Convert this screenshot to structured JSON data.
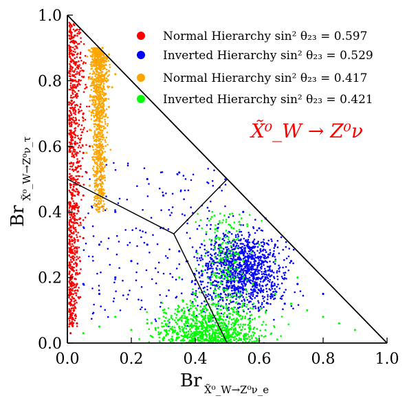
{
  "chart_data": {
    "type": "scatter",
    "title": "",
    "xlabel": "Br",
    "xlabel_sub": "X̃⁰_W→Z⁰ν_e",
    "ylabel": "Br",
    "ylabel_sub": "X̃⁰_W→Z⁰ν_τ",
    "xlim": [
      0.0,
      1.0
    ],
    "ylim": [
      0.0,
      1.0
    ],
    "x_ticks": [
      "0.0",
      "0.2",
      "0.4",
      "0.6",
      "0.8",
      "1.0"
    ],
    "y_ticks": [
      "0.0",
      "0.2",
      "0.4",
      "0.6",
      "0.8",
      "1.0"
    ],
    "grid": false,
    "legend_position": "top-right",
    "annotation": {
      "text": "X̃⁰_W → Z⁰ν",
      "color": "#ff0000"
    },
    "series": [
      {
        "name": "Normal Hierarchy sin² θ₂₃ = 0.597",
        "color": "#ff0000",
        "region": "narrow band along left edge",
        "x_range": [
          0.0,
          0.12
        ],
        "y_range": [
          0.02,
          0.98
        ],
        "points": [
          [
            0.01,
            0.95
          ],
          [
            0.02,
            0.92
          ],
          [
            0.015,
            0.88
          ],
          [
            0.03,
            0.9
          ],
          [
            0.025,
            0.85
          ],
          [
            0.04,
            0.87
          ],
          [
            0.05,
            0.83
          ],
          [
            0.02,
            0.8
          ],
          [
            0.06,
            0.78
          ],
          [
            0.03,
            0.76
          ],
          [
            0.04,
            0.72
          ],
          [
            0.05,
            0.7
          ],
          [
            0.03,
            0.67
          ],
          [
            0.07,
            0.65
          ],
          [
            0.04,
            0.62
          ],
          [
            0.05,
            0.58
          ],
          [
            0.03,
            0.55
          ],
          [
            0.06,
            0.52
          ],
          [
            0.04,
            0.48
          ],
          [
            0.05,
            0.45
          ],
          [
            0.03,
            0.42
          ],
          [
            0.04,
            0.38
          ],
          [
            0.02,
            0.35
          ],
          [
            0.05,
            0.32
          ],
          [
            0.03,
            0.28
          ],
          [
            0.04,
            0.25
          ],
          [
            0.02,
            0.22
          ],
          [
            0.03,
            0.18
          ],
          [
            0.04,
            0.14
          ],
          [
            0.02,
            0.1
          ],
          [
            0.03,
            0.06
          ],
          [
            0.01,
            0.03
          ],
          [
            0.08,
            0.74
          ],
          [
            0.09,
            0.68
          ],
          [
            0.07,
            0.6
          ]
        ]
      },
      {
        "name": "Inverted Hierarchy sin² θ₂₃ = 0.529",
        "color": "#0000ff",
        "region": "broad cloud centred near x=0.5, y=0.3",
        "x_range": [
          0.0,
          0.85
        ],
        "y_range": [
          0.0,
          0.55
        ],
        "points": [
          [
            0.55,
            0.4
          ],
          [
            0.6,
            0.35
          ],
          [
            0.62,
            0.38
          ],
          [
            0.52,
            0.3
          ],
          [
            0.58,
            0.28
          ],
          [
            0.65,
            0.3
          ],
          [
            0.5,
            0.25
          ],
          [
            0.45,
            0.3
          ],
          [
            0.42,
            0.22
          ],
          [
            0.35,
            0.28
          ],
          [
            0.3,
            0.35
          ],
          [
            0.25,
            0.3
          ],
          [
            0.2,
            0.25
          ],
          [
            0.15,
            0.2
          ],
          [
            0.1,
            0.15
          ],
          [
            0.4,
            0.18
          ],
          [
            0.48,
            0.15
          ],
          [
            0.55,
            0.2
          ],
          [
            0.62,
            0.22
          ],
          [
            0.7,
            0.25
          ],
          [
            0.72,
            0.18
          ],
          [
            0.68,
            0.12
          ],
          [
            0.6,
            0.1
          ],
          [
            0.5,
            0.08
          ],
          [
            0.38,
            0.1
          ],
          [
            0.3,
            0.45
          ],
          [
            0.25,
            0.5
          ],
          [
            0.35,
            0.52
          ],
          [
            0.15,
            0.4
          ],
          [
            0.1,
            0.3
          ],
          [
            0.05,
            0.18
          ],
          [
            0.57,
            0.33
          ],
          [
            0.63,
            0.27
          ],
          [
            0.47,
            0.35
          ],
          [
            0.8,
            0.15
          ]
        ]
      },
      {
        "name": "Normal Hierarchy sin² θ₂₃ = 0.417",
        "color": "#ffa500",
        "region": "dense cluster upper left",
        "x_range": [
          0.03,
          0.16
        ],
        "y_range": [
          0.45,
          0.92
        ],
        "points": [
          [
            0.08,
            0.88
          ],
          [
            0.1,
            0.85
          ],
          [
            0.12,
            0.86
          ],
          [
            0.09,
            0.82
          ],
          [
            0.11,
            0.8
          ],
          [
            0.13,
            0.83
          ],
          [
            0.1,
            0.78
          ],
          [
            0.12,
            0.76
          ],
          [
            0.08,
            0.75
          ],
          [
            0.11,
            0.73
          ],
          [
            0.09,
            0.7
          ],
          [
            0.13,
            0.72
          ],
          [
            0.1,
            0.68
          ],
          [
            0.12,
            0.8
          ],
          [
            0.14,
            0.78
          ],
          [
            0.07,
            0.65
          ],
          [
            0.09,
            0.62
          ],
          [
            0.1,
            0.6
          ],
          [
            0.08,
            0.56
          ],
          [
            0.09,
            0.52
          ],
          [
            0.07,
            0.48
          ],
          [
            0.11,
            0.9
          ],
          [
            0.13,
            0.88
          ],
          [
            0.15,
            0.82
          ],
          [
            0.06,
            0.58
          ]
        ]
      },
      {
        "name": "Inverted Hierarchy sin² θ₂₃ = 0.421",
        "color": "#00ff00",
        "region": "broad cloud lower region",
        "x_range": [
          0.0,
          0.95
        ],
        "y_range": [
          0.0,
          0.45
        ],
        "points": [
          [
            0.45,
            0.05
          ],
          [
            0.4,
            0.08
          ],
          [
            0.5,
            0.1
          ],
          [
            0.55,
            0.12
          ],
          [
            0.6,
            0.08
          ],
          [
            0.35,
            0.05
          ],
          [
            0.3,
            0.1
          ],
          [
            0.25,
            0.06
          ],
          [
            0.2,
            0.04
          ],
          [
            0.15,
            0.08
          ],
          [
            0.65,
            0.15
          ],
          [
            0.7,
            0.12
          ],
          [
            0.75,
            0.1
          ],
          [
            0.8,
            0.08
          ],
          [
            0.85,
            0.06
          ],
          [
            0.9,
            0.04
          ],
          [
            0.5,
            0.2
          ],
          [
            0.55,
            0.25
          ],
          [
            0.6,
            0.3
          ],
          [
            0.65,
            0.25
          ],
          [
            0.45,
            0.18
          ],
          [
            0.4,
            0.15
          ],
          [
            0.35,
            0.2
          ],
          [
            0.48,
            0.28
          ],
          [
            0.52,
            0.35
          ],
          [
            0.1,
            0.05
          ],
          [
            0.05,
            0.03
          ],
          [
            0.58,
            0.18
          ],
          [
            0.72,
            0.2
          ],
          [
            0.42,
            0.02
          ]
        ]
      }
    ],
    "boundary_lines": [
      {
        "from": [
          0.0,
          0.5
        ],
        "to": [
          0.333,
          0.333
        ]
      },
      {
        "from": [
          0.333,
          0.333
        ],
        "to": [
          0.5,
          0.0
        ]
      },
      {
        "from": [
          0.333,
          0.333
        ],
        "to": [
          0.5,
          0.5
        ]
      }
    ]
  }
}
